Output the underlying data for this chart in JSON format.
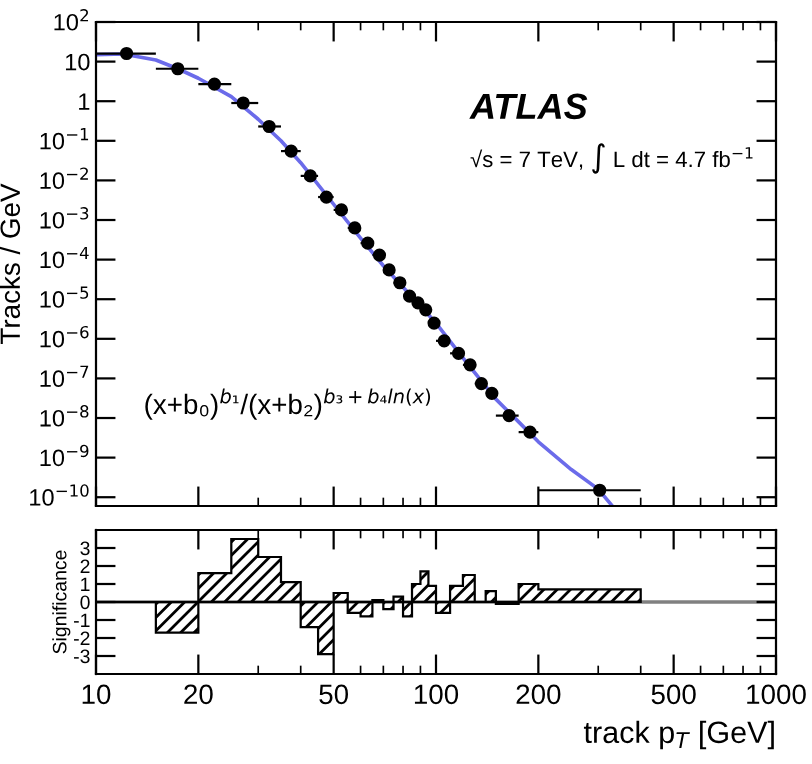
{
  "chart_data": [
    {
      "type": "scatter",
      "ylabel": "Tracks / GeV",
      "log": "xy",
      "xlim": [
        10,
        1000
      ],
      "ylim": [
        6e-11,
        100
      ],
      "xticks": [
        10,
        20,
        50,
        100,
        200,
        500,
        1000
      ],
      "yticks": [
        {
          "value": 100,
          "label": "10$^{2}$"
        },
        10,
        1,
        {
          "value": 0.1,
          "label": "10$^{−1}$"
        },
        {
          "value": 0.01,
          "label": "10$^{−2}$"
        },
        {
          "value": 0.001,
          "label": "10$^{−3}$"
        },
        {
          "value": 0.0001,
          "label": "10$^{−4}$"
        },
        {
          "value": 1e-05,
          "label": "10$^{−5}$"
        },
        {
          "value": 1e-06,
          "label": "10$^{−6}$"
        },
        {
          "value": 1e-07,
          "label": "10$^{−7}$"
        },
        {
          "value": 1e-08,
          "label": "10$^{−8}$"
        },
        {
          "value": 1e-09,
          "label": "10$^{−9}$"
        },
        {
          "value": 1e-10,
          "label": "10$^{−10}$"
        }
      ],
      "tick_labels": "y",
      "annotations": [
        "ATLAS",
        "√s = 7 TeV, ∫ L dt = 4.7 fb$^{−1}$",
        "(x+b₀)$^{b₁}$/(x+b₂)$^{b₃+b₄ln(x)}$"
      ],
      "series": [
        {
          "type": "scatter",
          "marker": "circle",
          "color": "#000000",
          "x": [
            12.3,
            17.4,
            22.3,
            27.1,
            32.3,
            37.5,
            42.7,
            47.6,
            52.7,
            57.7,
            63,
            68.2,
            72.8,
            78.3,
            83.6,
            88.5,
            93.3,
            98.7,
            105.7,
            116.5,
            126,
            136,
            146,
            164,
            189,
            303
          ],
          "values": [
            16,
            6.6,
            2.7,
            0.9,
            0.23,
            0.055,
            0.013,
            0.0038,
            0.0018,
            0.00063,
            0.00026,
            0.00013,
            5.5e-05,
            2.6e-05,
            1.2e-05,
            8.1e-06,
            5.4e-06,
            2.5e-06,
            8.9e-07,
            4.3e-07,
            2.2e-07,
            7.4e-08,
            4.2e-08,
            1.15e-08,
            4.4e-09,
            1.5e-10
          ],
          "xerrors": [
            [
              10,
              15
            ],
            [
              15,
              20
            ],
            [
              20,
              25
            ],
            [
              25,
              30
            ],
            [
              30,
              35
            ],
            [
              35,
              40
            ],
            [
              40,
              45
            ],
            [
              45,
              50
            ],
            [
              50,
              55
            ],
            [
              55,
              60
            ],
            [
              60,
              65
            ],
            [
              65,
              70
            ],
            [
              70,
              75
            ],
            [
              75,
              80
            ],
            [
              80,
              85
            ],
            [
              85,
              90
            ],
            [
              90,
              95
            ],
            [
              95,
              100
            ],
            [
              100,
              110
            ],
            [
              110,
              120
            ],
            [
              120,
              130
            ],
            [
              130,
              140
            ],
            [
              140,
              150
            ],
            [
              150,
              175
            ],
            [
              175,
              200
            ],
            [
              200,
              400
            ]
          ]
        },
        {
          "type": "line",
          "color": "#6b6bea",
          "x": [
            10,
            12,
            15,
            17.4,
            20,
            25,
            30,
            35,
            40,
            50,
            60,
            70,
            80,
            100,
            120,
            150,
            175,
            200,
            250,
            300,
            330
          ],
          "values": [
            15,
            15.5,
            11,
            6.6,
            3.8,
            1.3,
            0.35,
            0.1,
            0.028,
            0.0025,
            0.00035,
            7e-05,
            2e-05,
            2.5e-06,
            3.3e-07,
            3e-08,
            8e-09,
            2.5e-09,
            5e-10,
            1.6e-10,
            6e-11
          ]
        }
      ]
    },
    {
      "type": "histogram",
      "ylabel": "Significance",
      "xlabel": "track p$_{T}$ [GeV]",
      "log": "x",
      "xlim": [
        10,
        1000
      ],
      "ylim": [
        -4,
        4
      ],
      "xticks": [
        10,
        20,
        50,
        100,
        200,
        500,
        1000
      ],
      "yticks": [
        {
          "value": 3,
          "label": "3"
        },
        {
          "value": 2,
          "label": "2"
        },
        {
          "value": 1,
          "label": "1"
        },
        {
          "value": 0,
          "label": "0"
        },
        {
          "value": -1,
          "label": "-1"
        },
        {
          "value": -2,
          "label": "-2"
        },
        {
          "value": -3,
          "label": "-3"
        }
      ],
      "bins": [
        10,
        15,
        20,
        25,
        30,
        35,
        40,
        45,
        50,
        55,
        60,
        65,
        70,
        75,
        80,
        85,
        90,
        95,
        100,
        110,
        120,
        130,
        140,
        150,
        175,
        200,
        400
      ],
      "values": [
        0,
        -1.7,
        1.6,
        3.5,
        2.5,
        1.1,
        -1.4,
        -2.9,
        0.5,
        -0.6,
        -0.8,
        0.1,
        -0.4,
        0.3,
        -0.8,
        1.0,
        1.7,
        0.9,
        -0.6,
        0.9,
        1.5,
        0,
        0.6,
        -0.1,
        1.0,
        0.7
      ],
      "color": "#000000",
      "ref_lines": [
        {
          "axis": "y",
          "value": 0,
          "color": "#808080"
        }
      ]
    }
  ]
}
